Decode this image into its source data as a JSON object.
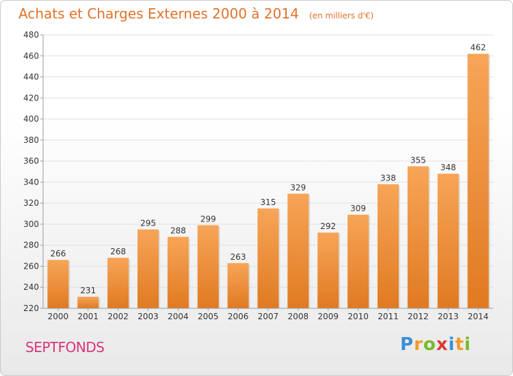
{
  "title": "Achats et Charges Externes 2000 à 2014",
  "subtitle": "(en milliers d'€)",
  "place": "SEPTFONDS",
  "logo": "Proxiti",
  "colors": {
    "bar": "#f0923a",
    "title": "#e0722a",
    "place": "#d9357a",
    "grid": "#dddddd"
  },
  "chart_data": {
    "type": "bar",
    "title": "Achats et Charges Externes 2000 à 2014",
    "subtitle": "(en milliers d'€)",
    "categories": [
      "2000",
      "2001",
      "2002",
      "2003",
      "2004",
      "2005",
      "2006",
      "2007",
      "2008",
      "2009",
      "2010",
      "2011",
      "2012",
      "2013",
      "2014"
    ],
    "values": [
      266,
      231,
      268,
      295,
      288,
      299,
      263,
      315,
      329,
      292,
      309,
      338,
      355,
      348,
      462
    ],
    "xlabel": "",
    "ylabel": "",
    "ylim": [
      220,
      480
    ],
    "yticks": [
      220,
      240,
      260,
      280,
      300,
      320,
      340,
      360,
      380,
      400,
      420,
      440,
      460,
      480
    ],
    "grid": true,
    "data_labels": true
  }
}
